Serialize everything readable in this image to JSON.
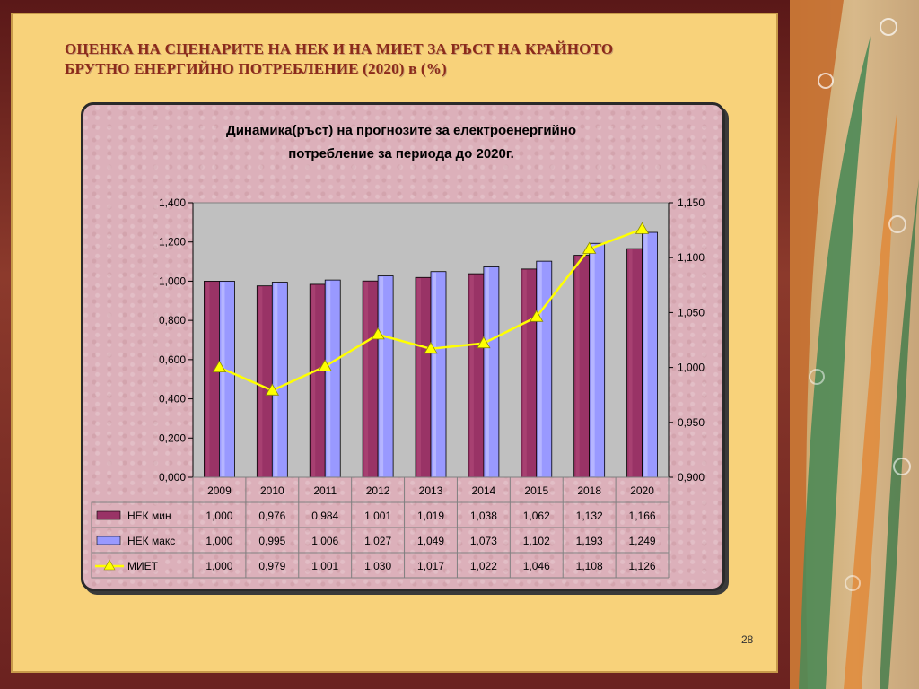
{
  "slide": {
    "heading_line1": "ОЦЕНКА НА СЦЕНАРИТЕ НА НЕК И  НА МИЕТ  ЗА РЪСТ НА КРАЙНОТО",
    "heading_line2": "БРУТНО ЕНЕРГИЙНО ПОТРЕБЛЕНИЕ (2020)   в  (%)",
    "page_number": "28"
  },
  "chart_data": {
    "type": "bar",
    "title_line1": "Динамика(ръст) на прогнозите за електроенергийно",
    "title_line2": "потребление за периода до 2020г.",
    "categories": [
      "2009",
      "2010",
      "2011",
      "2012",
      "2013",
      "2014",
      "2015",
      "2018",
      "2020"
    ],
    "series": [
      {
        "name": "НЕК мин",
        "kind": "bar",
        "axis": "left",
        "color": "#993366",
        "values": [
          1.0,
          0.976,
          0.984,
          1.001,
          1.019,
          1.038,
          1.062,
          1.132,
          1.166
        ],
        "labels": [
          "1,000",
          "0,976",
          "0,984",
          "1,001",
          "1,019",
          "1,038",
          "1,062",
          "1,132",
          "1,166"
        ]
      },
      {
        "name": "НЕК макс",
        "kind": "bar",
        "axis": "left",
        "color": "#9999ff",
        "values": [
          1.0,
          0.995,
          1.006,
          1.027,
          1.049,
          1.073,
          1.102,
          1.193,
          1.249
        ],
        "labels": [
          "1,000",
          "0,995",
          "1,006",
          "1,027",
          "1,049",
          "1,073",
          "1,102",
          "1,193",
          "1,249"
        ]
      },
      {
        "name": "МИЕТ",
        "kind": "line",
        "axis": "right",
        "color": "#ffff00",
        "values": [
          1.0,
          0.979,
          1.001,
          1.03,
          1.017,
          1.022,
          1.046,
          1.108,
          1.126
        ],
        "labels": [
          "1,000",
          "0,979",
          "1,001",
          "1,030",
          "1,017",
          "1,022",
          "1,046",
          "1,108",
          "1,126"
        ]
      }
    ],
    "ylim_left": [
      0,
      1.4
    ],
    "yticks_left": [
      "0,000",
      "0,200",
      "0,400",
      "0,600",
      "0,800",
      "1,000",
      "1,200",
      "1,400"
    ],
    "ylim_right": [
      0.9,
      1.15
    ],
    "yticks_right": [
      "0,900",
      "0,950",
      "1,000",
      "1,050",
      "1,100",
      "1,150"
    ],
    "legend": "data-table",
    "grid": false
  },
  "colors": {
    "plot_area": "#c0c0c0",
    "bar_min_light": "#b04a78",
    "bar_max_light": "#c8c8ff"
  }
}
